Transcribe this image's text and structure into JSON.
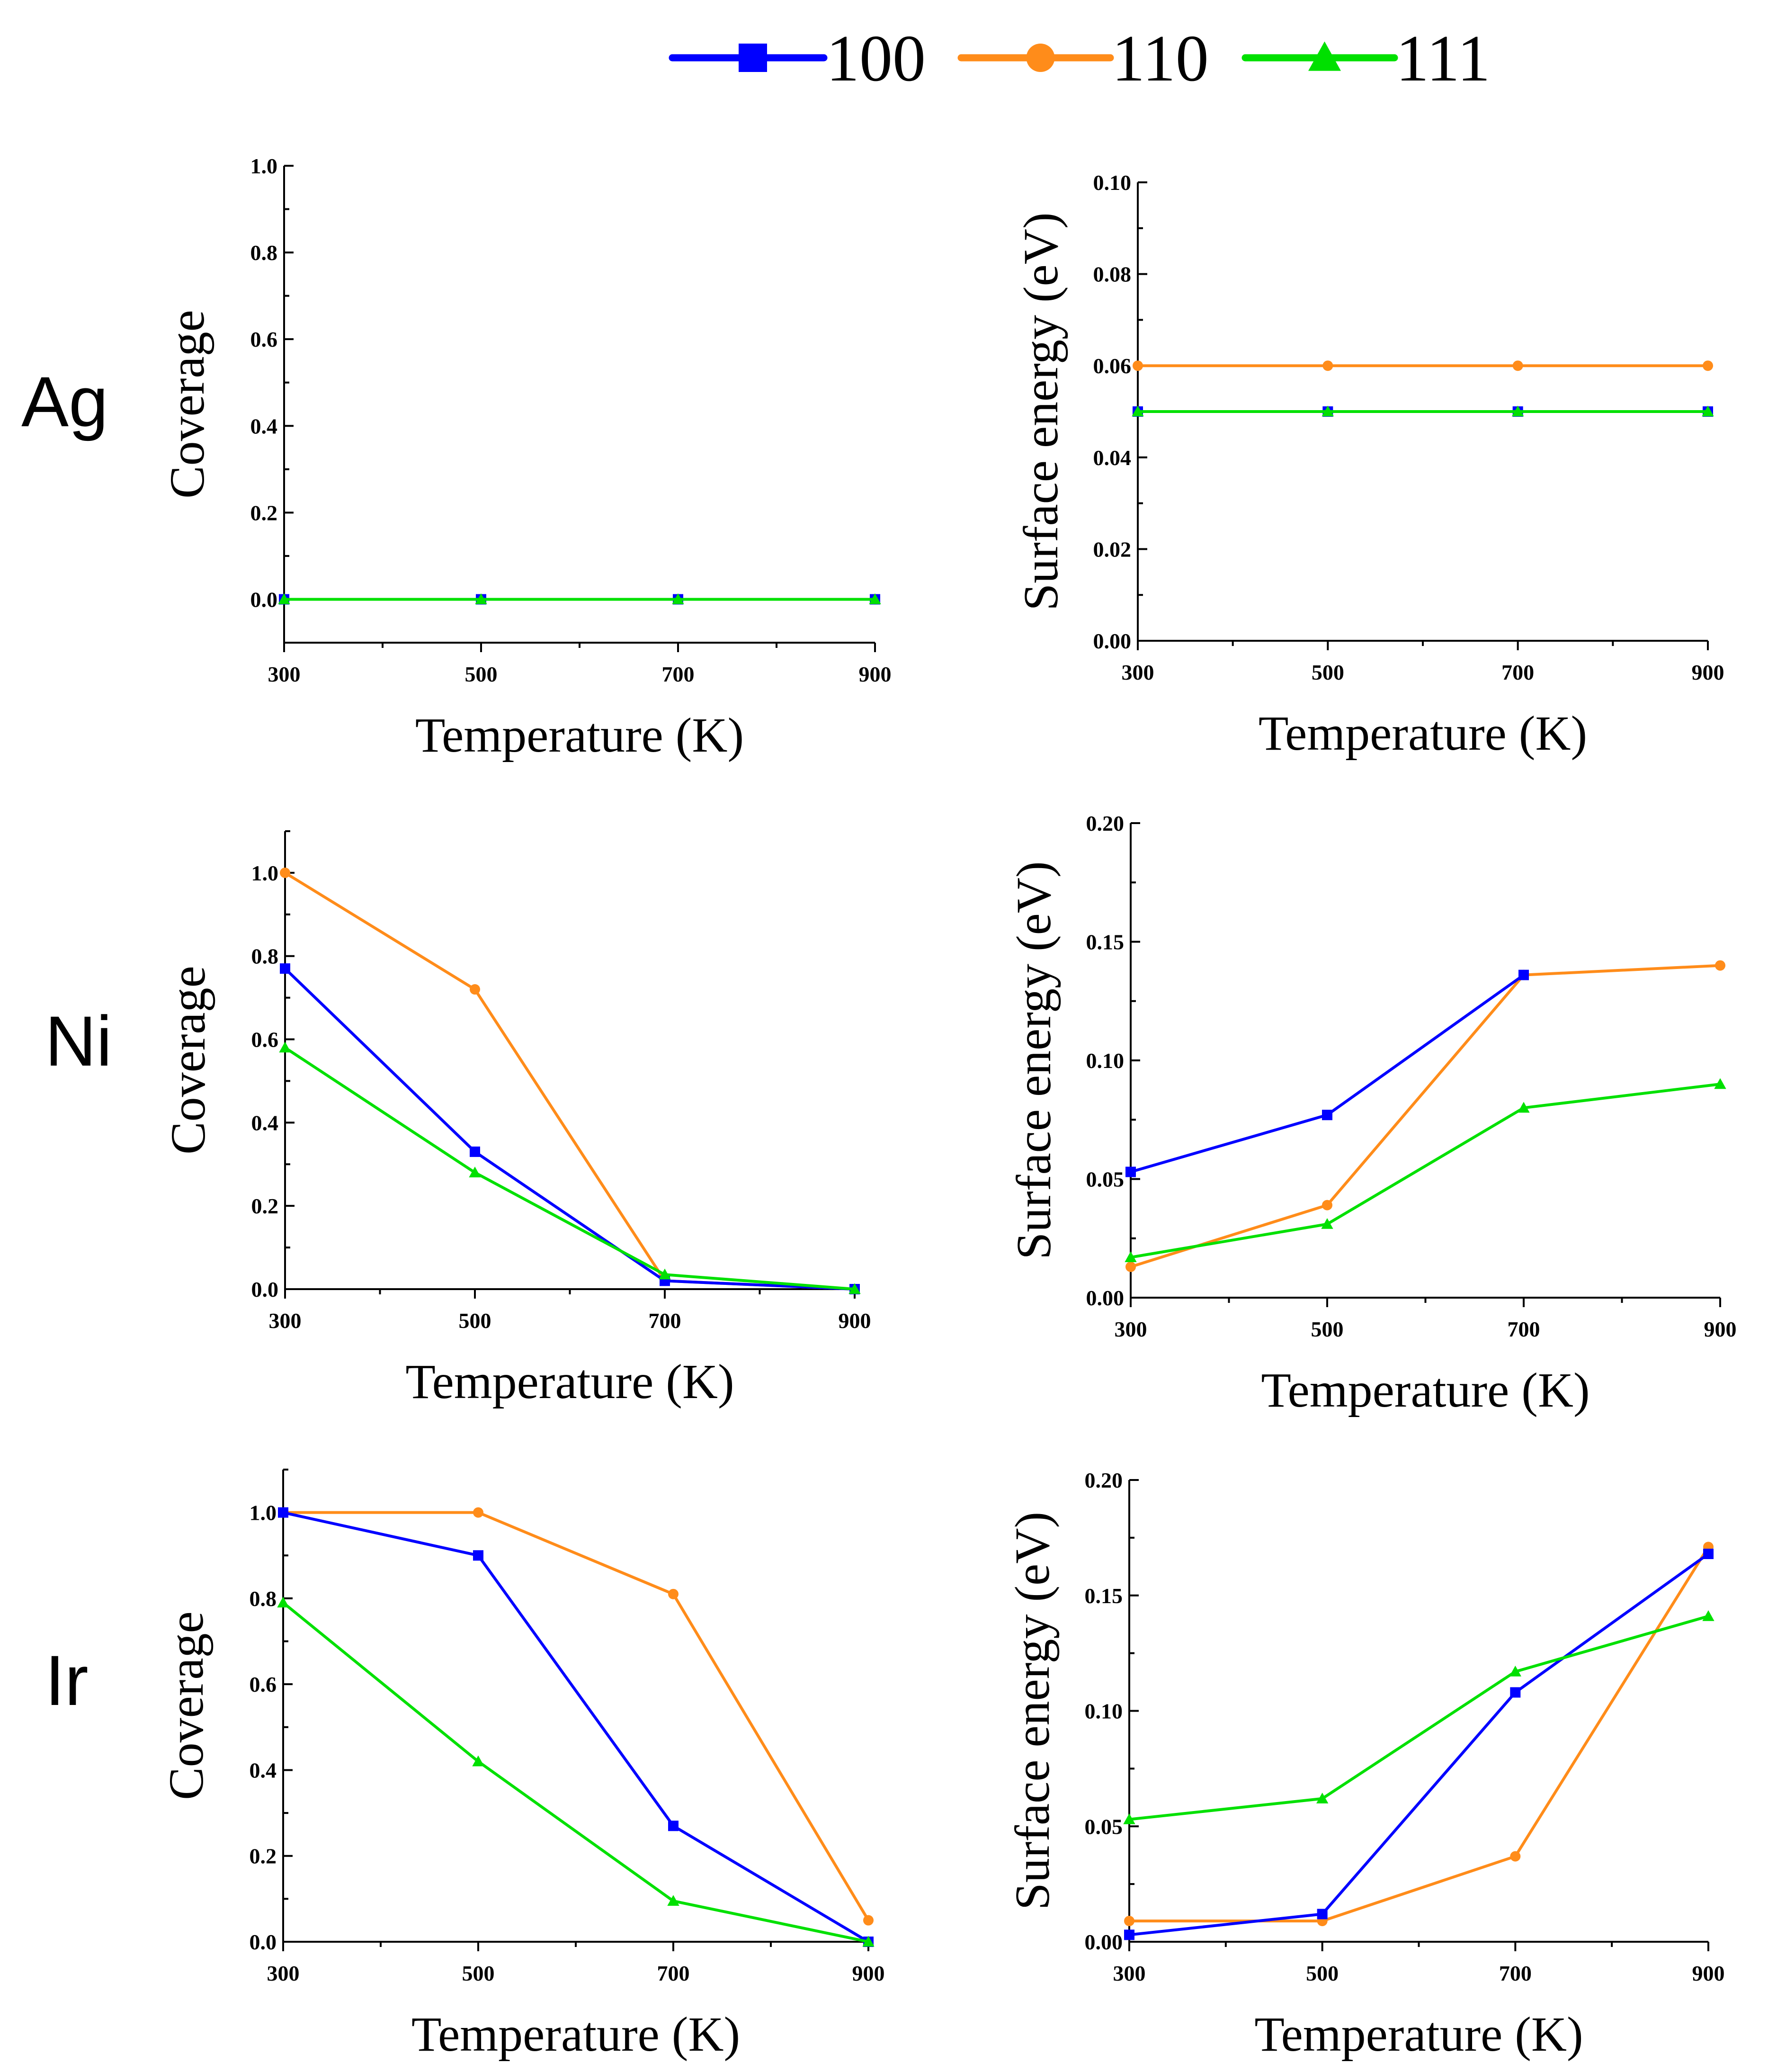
{
  "legend": {
    "items": [
      {
        "label": "100",
        "color": "#0000FF",
        "marker": "square"
      },
      {
        "label": "110",
        "color": "#FF8C1A",
        "marker": "circle"
      },
      {
        "label": "111",
        "color": "#00E000",
        "marker": "triangle"
      }
    ]
  },
  "rows": [
    {
      "label": "Ag"
    },
    {
      "label": "Ni"
    },
    {
      "label": "Ir"
    }
  ],
  "chart_data": [
    {
      "id": "ag-coverage",
      "type": "line",
      "row": "Ag",
      "xlabel": "Temperature (K)",
      "ylabel": "Coverage",
      "x": [
        300,
        500,
        700,
        900
      ],
      "xlim": [
        300,
        900
      ],
      "xticks": [
        "300",
        "500",
        "700",
        "900"
      ],
      "ylim": [
        -0.1,
        1.0
      ],
      "yticks": [
        "0.0",
        "0.2",
        "0.4",
        "0.6",
        "0.8",
        "1.0"
      ],
      "series": [
        {
          "name": "100",
          "values": [
            0.0,
            0.0,
            0.0,
            0.0
          ]
        },
        {
          "name": "110",
          "values": [
            0.0,
            0.0,
            0.0,
            0.0
          ]
        },
        {
          "name": "111",
          "values": [
            0.0,
            0.0,
            0.0,
            0.0
          ]
        }
      ]
    },
    {
      "id": "ag-surface-energy",
      "type": "line",
      "row": "Ag",
      "xlabel": "Temperature (K)",
      "ylabel": "Surface energy (eV)",
      "x": [
        300,
        500,
        700,
        900
      ],
      "xlim": [
        300,
        900
      ],
      "xticks": [
        "300",
        "500",
        "700",
        "900"
      ],
      "ylim": [
        0.0,
        0.1
      ],
      "yticks": [
        "0.00",
        "0.02",
        "0.04",
        "0.06",
        "0.08",
        "0.10"
      ],
      "series": [
        {
          "name": "100",
          "values": [
            0.05,
            0.05,
            0.05,
            0.05
          ]
        },
        {
          "name": "110",
          "values": [
            0.06,
            0.06,
            0.06,
            0.06
          ]
        },
        {
          "name": "111",
          "values": [
            0.05,
            0.05,
            0.05,
            0.05
          ]
        }
      ]
    },
    {
      "id": "ni-coverage",
      "type": "line",
      "row": "Ni",
      "xlabel": "Temperature (K)",
      "ylabel": "Coverage",
      "x": [
        300,
        500,
        700,
        900
      ],
      "xlim": [
        300,
        900
      ],
      "xticks": [
        "300",
        "500",
        "700",
        "900"
      ],
      "ylim": [
        0.0,
        1.1
      ],
      "yticks": [
        "0.0",
        "0.2",
        "0.4",
        "0.6",
        "0.8",
        "1.0"
      ],
      "series": [
        {
          "name": "100",
          "values": [
            0.77,
            0.33,
            0.02,
            0.0
          ]
        },
        {
          "name": "110",
          "values": [
            1.0,
            0.72,
            0.02,
            0.0
          ]
        },
        {
          "name": "111",
          "values": [
            0.58,
            0.28,
            0.035,
            0.0
          ]
        }
      ]
    },
    {
      "id": "ni-surface-energy",
      "type": "line",
      "row": "Ni",
      "xlabel": "Temperature (K)",
      "ylabel": "Surface energy (eV)",
      "x": [
        300,
        500,
        700,
        900
      ],
      "xlim": [
        300,
        900
      ],
      "xticks": [
        "300",
        "500",
        "700",
        "900"
      ],
      "ylim": [
        0.0,
        0.2
      ],
      "yticks": [
        "0.00",
        "0.05",
        "0.10",
        "0.15",
        "0.20"
      ],
      "series": [
        {
          "name": "100",
          "values": [
            0.053,
            0.077,
            0.136,
            null
          ]
        },
        {
          "name": "110",
          "values": [
            0.013,
            0.039,
            0.136,
            0.14
          ]
        },
        {
          "name": "111",
          "values": [
            0.017,
            0.031,
            0.08,
            0.09
          ]
        }
      ]
    },
    {
      "id": "ir-coverage",
      "type": "line",
      "row": "Ir",
      "xlabel": "Temperature (K)",
      "ylabel": "Coverage",
      "x": [
        300,
        500,
        700,
        900
      ],
      "xlim": [
        300,
        900
      ],
      "xticks": [
        "300",
        "500",
        "700",
        "900"
      ],
      "ylim": [
        0.0,
        1.1
      ],
      "yticks": [
        "0.0",
        "0.2",
        "0.4",
        "0.6",
        "0.8",
        "1.0"
      ],
      "series": [
        {
          "name": "100",
          "values": [
            1.0,
            0.9,
            0.27,
            0.0
          ]
        },
        {
          "name": "110",
          "values": [
            1.0,
            1.0,
            0.81,
            0.05
          ]
        },
        {
          "name": "111",
          "values": [
            0.79,
            0.42,
            0.095,
            0.0
          ]
        }
      ]
    },
    {
      "id": "ir-surface-energy",
      "type": "line",
      "row": "Ir",
      "xlabel": "Temperature (K)",
      "ylabel": "Surface energy (eV)",
      "x": [
        300,
        500,
        700,
        900
      ],
      "xlim": [
        300,
        900
      ],
      "xticks": [
        "300",
        "500",
        "700",
        "900"
      ],
      "ylim": [
        0.0,
        0.2
      ],
      "yticks": [
        "0.00",
        "0.05",
        "0.10",
        "0.15",
        "0.20"
      ],
      "series": [
        {
          "name": "100",
          "values": [
            0.003,
            0.012,
            0.108,
            0.168
          ]
        },
        {
          "name": "110",
          "values": [
            0.009,
            0.009,
            0.037,
            0.171
          ]
        },
        {
          "name": "111",
          "values": [
            0.053,
            0.062,
            0.117,
            0.141
          ]
        }
      ]
    }
  ]
}
